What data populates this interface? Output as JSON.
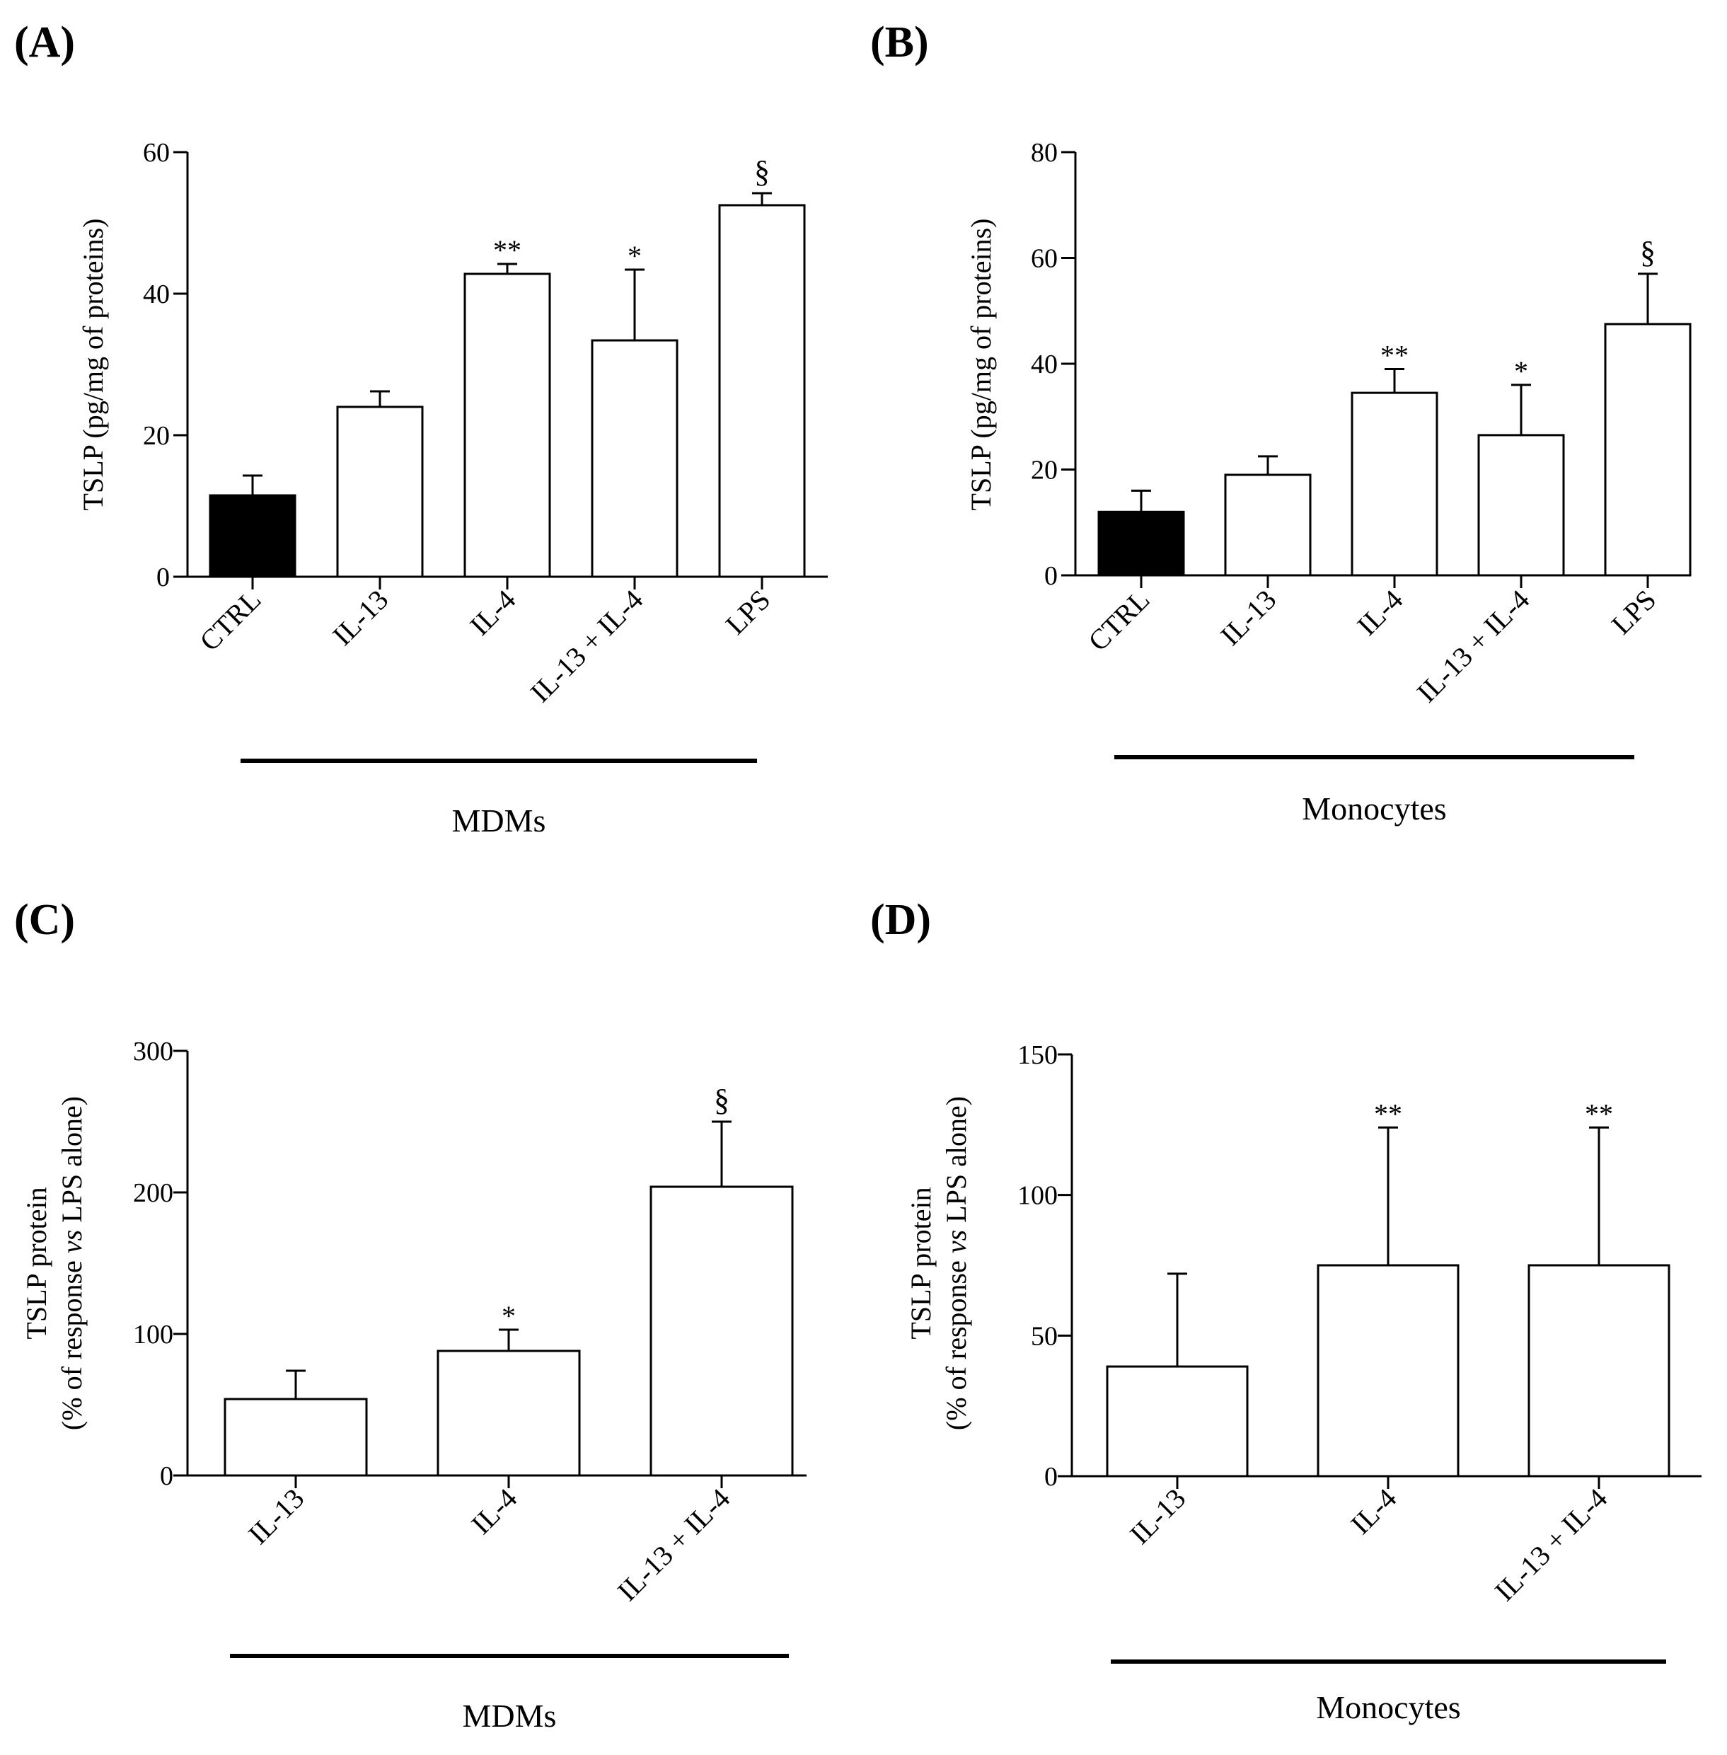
{
  "colors": {
    "ctrl_fill": "#000000",
    "bar_fill": "#ffffff",
    "stroke": "#000000"
  },
  "chart_data": [
    {
      "type": "bar",
      "panel_label": "(A)",
      "ylabel": [
        "TSLP (pg/mg of proteins)"
      ],
      "ylim": [
        0,
        60
      ],
      "yticks": [
        0,
        20,
        40,
        60
      ],
      "categories": [
        "CTRL",
        "IL-13",
        "IL-4",
        "IL-13 + IL-4",
        "LPS"
      ],
      "values": [
        11.5,
        24,
        42.8,
        33.4,
        52.5
      ],
      "errors": [
        2.8,
        2.2,
        1.4,
        10.0,
        1.7
      ],
      "annotations": [
        "",
        "",
        "**",
        "*",
        "§"
      ],
      "filled": [
        true,
        false,
        false,
        false,
        false
      ],
      "group_label": "MDMs"
    },
    {
      "type": "bar",
      "panel_label": "(B)",
      "ylabel": [
        "TSLP (pg/mg of proteins)"
      ],
      "ylim": [
        0,
        80
      ],
      "yticks": [
        0,
        20,
        40,
        60,
        80
      ],
      "categories": [
        "CTRL",
        "IL-13",
        "IL-4",
        "IL-13 + IL-4",
        "LPS"
      ],
      "values": [
        12,
        19,
        34.5,
        26.5,
        47.5
      ],
      "errors": [
        4,
        3.5,
        4.5,
        9.5,
        9.5
      ],
      "annotations": [
        "",
        "",
        "**",
        "*",
        "§"
      ],
      "filled": [
        true,
        false,
        false,
        false,
        false
      ],
      "group_label": "Monocytes"
    },
    {
      "type": "bar",
      "panel_label": "(C)",
      "ylabel": [
        "TSLP protein",
        "(% of response vs LPS alone)"
      ],
      "ylim": [
        0,
        300
      ],
      "yticks": [
        0,
        100,
        200,
        300
      ],
      "categories": [
        "IL-13",
        "IL-4",
        "IL-13 + IL-4"
      ],
      "values": [
        54,
        88,
        204
      ],
      "errors": [
        20,
        15,
        46
      ],
      "annotations": [
        "",
        "*",
        "§"
      ],
      "filled": [
        false,
        false,
        false
      ],
      "group_label": "MDMs"
    },
    {
      "type": "bar",
      "panel_label": "(D)",
      "ylabel": [
        "TSLP protein",
        "(% of response vs LPS alone)"
      ],
      "ylim": [
        0,
        150
      ],
      "yticks": [
        0,
        50,
        100,
        150
      ],
      "categories": [
        "IL-13",
        "IL-4",
        "IL-13 + IL-4"
      ],
      "values": [
        39,
        75,
        75
      ],
      "errors": [
        33,
        49,
        49
      ],
      "annotations": [
        "",
        "**",
        "**"
      ],
      "filled": [
        false,
        false,
        false
      ],
      "group_label": "Monocytes"
    }
  ]
}
